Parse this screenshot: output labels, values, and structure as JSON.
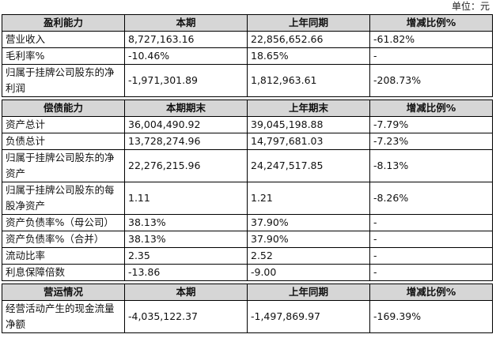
{
  "unit": "单位：元",
  "sections": [
    {
      "header": [
        "盈利能力",
        "本期",
        "上年同期",
        "增减比例%"
      ],
      "rows": [
        [
          "营业收入",
          "8,727,163.16",
          "22,856,652.66",
          "-61.82%"
        ],
        [
          "毛利率%",
          "-10.46%",
          "18.65%",
          "-"
        ],
        [
          "归属于挂牌公司股东的净利润",
          "-1,971,301.89",
          "1,812,963.61",
          "-208.73%"
        ]
      ]
    },
    {
      "header": [
        "偿债能力",
        "本期期末",
        "上年期末",
        "增减比例%"
      ],
      "rows": [
        [
          "资产总计",
          "36,004,490.92",
          "39,045,198.88",
          "-7.79%"
        ],
        [
          "负债总计",
          "13,728,274.96",
          "14,797,681.03",
          "-7.23%"
        ],
        [
          "归属于挂牌公司股东的净资产",
          "22,276,215.96",
          "24,247,517.85",
          "-8.13%"
        ],
        [
          "归属于挂牌公司股东的每股净资产",
          "1.11",
          "1.21",
          "-8.26%"
        ],
        [
          "资产负债率%（母公司）",
          "38.13%",
          "37.90%",
          "-"
        ],
        [
          "资产负债率%（合并）",
          "38.13%",
          "37.90%",
          "-"
        ],
        [
          "流动比率",
          "2.35",
          "2.52",
          "-"
        ],
        [
          "利息保障倍数",
          "-13.86",
          "-9.00",
          "-"
        ]
      ]
    },
    {
      "header": [
        "营运情况",
        "本期",
        "上年同期",
        "增减比例%"
      ],
      "rows": [
        [
          "经营活动产生的现金流量净额",
          "-4,035,122.37",
          "-1,497,869.97",
          "-169.39%"
        ]
      ]
    }
  ]
}
